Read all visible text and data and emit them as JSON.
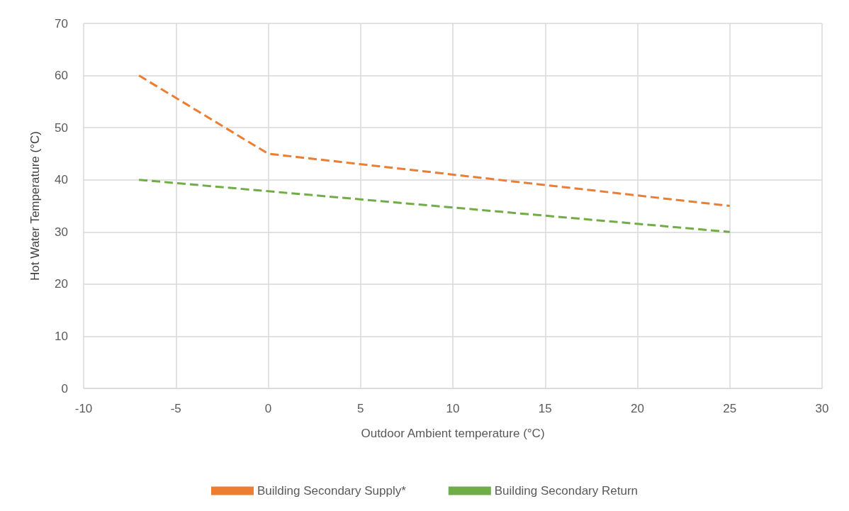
{
  "chart_data": {
    "type": "line",
    "xlabel": "Outdoor Ambient temperature (°C)",
    "ylabel": "Hot Water Temperature (°C)",
    "series": [
      {
        "name": "Building Secondary Supply*",
        "color": "#ed7d31",
        "x": [
          -7,
          0,
          25
        ],
        "values": [
          60,
          45,
          35
        ]
      },
      {
        "name": "Building Secondary Return",
        "color": "#70ad47",
        "x": [
          -7,
          25
        ],
        "values": [
          40,
          30
        ]
      }
    ],
    "xlim": [
      -10,
      30
    ],
    "xticks": [
      -10,
      -5,
      0,
      5,
      10,
      15,
      20,
      25,
      30
    ],
    "ylim": [
      0,
      70
    ],
    "yticks": [
      0,
      10,
      20,
      30,
      40,
      50,
      60,
      70
    ],
    "grid": true,
    "legend": "bottom",
    "marker": "none",
    "line_style": "dashed"
  }
}
